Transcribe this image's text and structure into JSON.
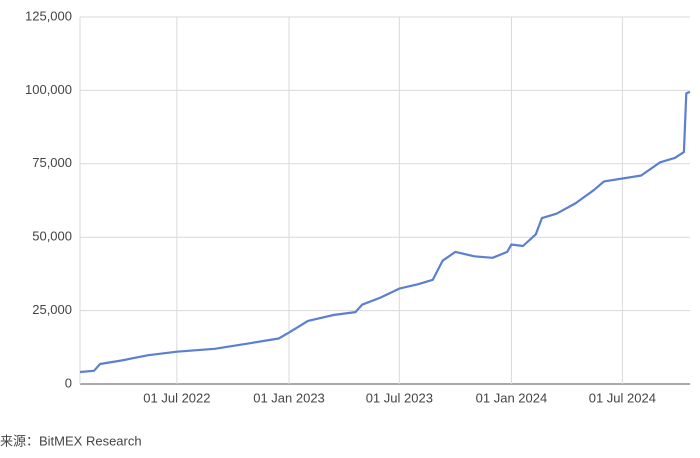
{
  "chart_data": {
    "type": "line",
    "x": [
      "2022-01-23",
      "2022-02-15",
      "2022-02-25",
      "2022-04-01",
      "2022-05-15",
      "2022-07-01",
      "2022-09-01",
      "2022-11-01",
      "2022-12-15",
      "2023-01-01",
      "2023-02-01",
      "2023-03-15",
      "2023-04-20",
      "2023-05-01",
      "2023-06-01",
      "2023-07-01",
      "2023-08-01",
      "2023-08-25",
      "2023-09-10",
      "2023-10-01",
      "2023-11-01",
      "2023-12-01",
      "2023-12-25",
      "2024-01-01",
      "2024-01-20",
      "2024-02-10",
      "2024-02-20",
      "2024-03-15",
      "2024-04-15",
      "2024-05-15",
      "2024-06-01",
      "2024-07-01",
      "2024-08-01",
      "2024-09-01",
      "2024-09-25",
      "2024-10-10",
      "2024-10-14",
      "2024-10-20"
    ],
    "series": [
      {
        "color": "#5b7fd1",
        "values": [
          4100,
          4500,
          6800,
          8000,
          9800,
          11000,
          12000,
          14000,
          15500,
          17500,
          21500,
          23500,
          24500,
          27000,
          29500,
          32500,
          34000,
          35500,
          42000,
          45000,
          43500,
          43000,
          45000,
          47500,
          47000,
          51000,
          56500,
          58000,
          61500,
          66000,
          69000,
          70000,
          71000,
          75500,
          77000,
          79000,
          99000,
          99500
        ]
      }
    ],
    "xlim": [
      "2022-01-23",
      "2024-10-20"
    ],
    "xticks": [
      {
        "value": "2022-07-01",
        "label": "01 Jul 2022"
      },
      {
        "value": "2023-01-01",
        "label": "01 Jan 2023"
      },
      {
        "value": "2023-07-01",
        "label": "01 Jul 2023"
      },
      {
        "value": "2024-01-01",
        "label": "01 Jan 2024"
      },
      {
        "value": "2024-07-01",
        "label": "01 Jul 2024"
      }
    ],
    "ylim": [
      0,
      125000
    ],
    "yticks": [
      0,
      {
        "value": 25000,
        "label": "25,000"
      },
      {
        "value": 50000,
        "label": "50,000"
      },
      {
        "value": 75000,
        "label": "75,000"
      },
      {
        "value": 100000,
        "label": "100,000"
      },
      {
        "value": 125000,
        "label": "125,000"
      }
    ],
    "grid": true,
    "source": "来源：BitMEX Research"
  }
}
